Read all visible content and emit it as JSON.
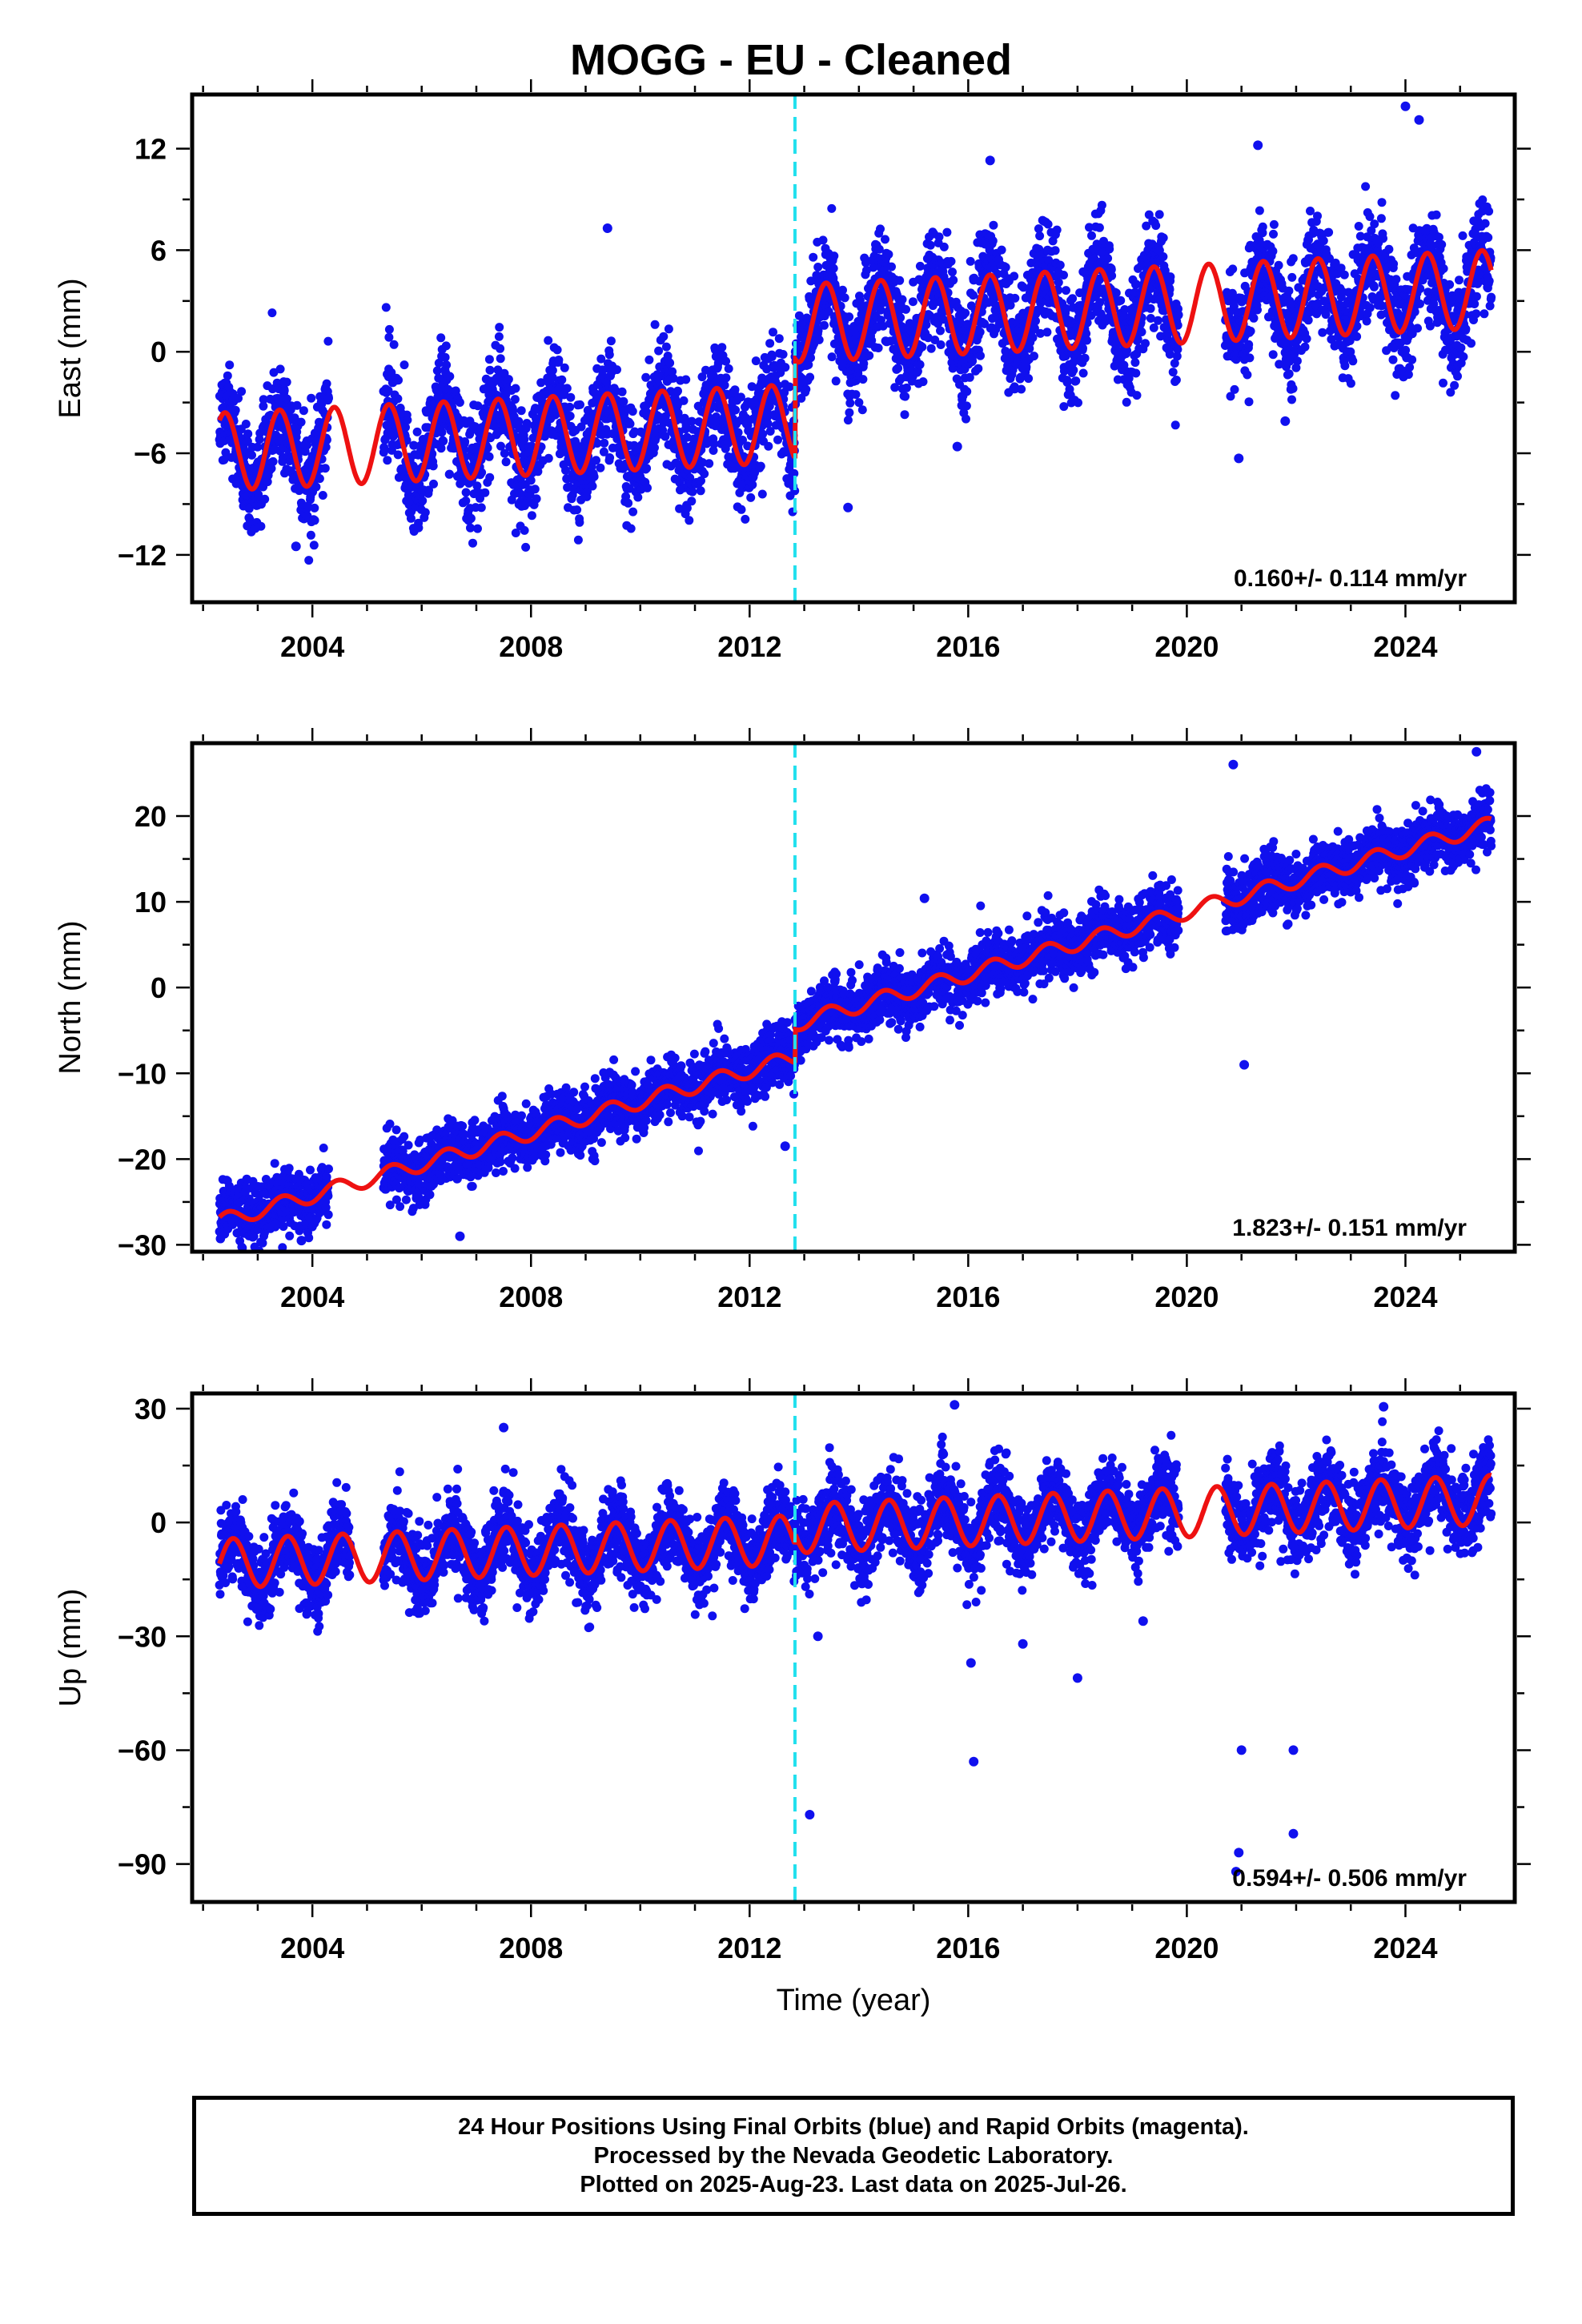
{
  "title": "MOGG  - EU - Cleaned",
  "xlabel": "Time (year)",
  "caption": [
    "24 Hour Positions Using Final Orbits (blue) and Rapid Orbits (magenta).",
    "Processed by the Nevada Geodetic Laboratory.",
    "Plotted on 2025-Aug-23. Last data on 2025-Jul-26."
  ],
  "colors": {
    "points": "#1010ee",
    "model": "#ee1111",
    "break_line": "#22e0ee",
    "frame": "#000000"
  },
  "chart_data": [
    {
      "type": "scatter",
      "name": "east",
      "ylabel": "East (mm)",
      "rate_label": "0.160+/- 0.114 mm/yr",
      "xlim": [
        2001.8,
        2026.0
      ],
      "ylim": [
        -14.8,
        15.2
      ],
      "xticks": [
        2004,
        2008,
        2012,
        2016,
        2020,
        2024
      ],
      "yticks": [
        12,
        6,
        0,
        -6,
        -12
      ],
      "ytick_labels": [
        "12",
        "6",
        "0",
        "−6",
        "−12"
      ],
      "break_epoch": 2012.83,
      "data_start": 2002.3,
      "data_end": 2025.57,
      "gaps": [
        [
          2019.85,
          2020.7
        ]
      ],
      "model": {
        "segment1_offset": -4.2,
        "segment2_offset": 1.7,
        "rate": 0.16,
        "amplitude": 2.3,
        "phase_peak": 0.4,
        "ref_epoch": 2013.0
      },
      "scatter_sd": 1.6,
      "outliers": [
        [
          2024.0,
          14.5
        ],
        [
          2024.25,
          13.7
        ],
        [
          2021.3,
          12.2
        ],
        [
          2016.4,
          11.3
        ],
        [
          2009.4,
          7.3
        ],
        [
          2013.8,
          -9.2
        ],
        [
          2020.95,
          -6.3
        ],
        [
          2015.8,
          -5.6
        ],
        [
          2003.7,
          -11.5
        ],
        [
          2021.8,
          -4.1
        ]
      ]
    },
    {
      "type": "scatter",
      "name": "north",
      "ylabel": "North (mm)",
      "rate_label": "1.823+/- 0.151 mm/yr",
      "xlim": [
        2001.8,
        2026.0
      ],
      "ylim": [
        -30.8,
        28.5
      ],
      "xticks": [
        2004,
        2008,
        2012,
        2016,
        2020,
        2024
      ],
      "yticks": [
        20,
        10,
        0,
        -10,
        -20,
        -30
      ],
      "ytick_labels": [
        "20",
        "10",
        "0",
        "−10",
        "−20",
        "−30"
      ],
      "break_epoch": 2012.83,
      "data_start": 2002.3,
      "data_end": 2025.57,
      "gaps": [
        [
          2019.85,
          2020.7
        ]
      ],
      "model": {
        "segment1_offset": -7.8,
        "segment2_offset": -3.9,
        "rate": 1.823,
        "amplitude": 0.9,
        "phase_peak": 0.45,
        "ref_epoch": 2013.0
      },
      "scatter_sd": 1.7,
      "outliers": [
        [
          2025.3,
          27.5
        ],
        [
          2020.85,
          26.0
        ],
        [
          2021.05,
          -9.0
        ],
        [
          2012.65,
          -18.5
        ],
        [
          2006.7,
          -29.0
        ],
        [
          2003.8,
          -29.5
        ],
        [
          2015.2,
          10.4
        ]
      ]
    },
    {
      "type": "scatter",
      "name": "up",
      "ylabel": "Up (mm)",
      "rate_label": "0.594+/- 0.506 mm/yr",
      "xlim": [
        2001.8,
        2026.0
      ],
      "ylim": [
        -100.0,
        34.0
      ],
      "xticks": [
        2004,
        2008,
        2012,
        2016,
        2020,
        2024
      ],
      "yticks": [
        30,
        0,
        -30,
        -60,
        -90
      ],
      "ytick_labels": [
        "30",
        "0",
        "−30",
        "−60",
        "−90"
      ],
      "break_epoch": 2012.83,
      "data_start": 2002.3,
      "data_end": 2025.57,
      "gaps": [
        [
          2019.85,
          2020.7
        ]
      ],
      "model": {
        "segment1_offset": -4.5,
        "segment2_offset": -1.5,
        "rate": 0.594,
        "amplitude": 6.5,
        "phase_peak": 0.55,
        "ref_epoch": 2013.0
      },
      "scatter_sd": 5.2,
      "outliers": [
        [
          2013.1,
          -77.0
        ],
        [
          2016.1,
          -63.0
        ],
        [
          2021.0,
          -60.0
        ],
        [
          2021.95,
          -60.0
        ],
        [
          2021.95,
          -82.0
        ],
        [
          2020.95,
          -87.0
        ],
        [
          2020.9,
          -92.0
        ],
        [
          2015.75,
          31.0
        ],
        [
          2023.6,
          30.5
        ],
        [
          2016.05,
          -37.0
        ],
        [
          2018.0,
          -41.0
        ],
        [
          2017.0,
          -32.0
        ],
        [
          2013.25,
          -30.0
        ],
        [
          2019.2,
          -26.0
        ],
        [
          2007.5,
          25.0
        ]
      ]
    }
  ]
}
